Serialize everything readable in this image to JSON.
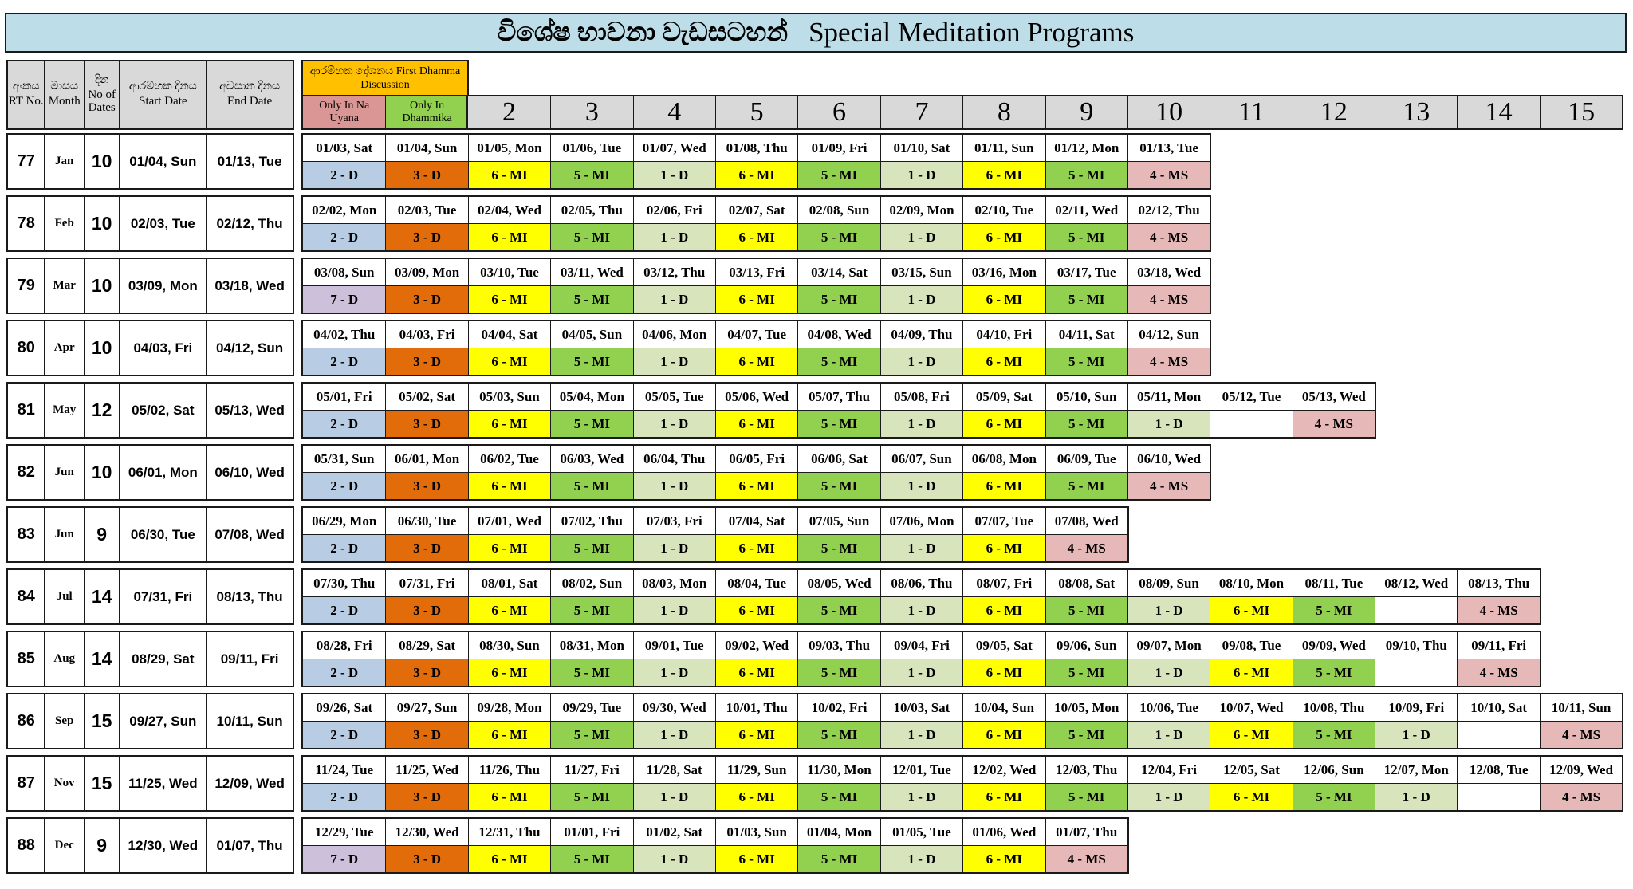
{
  "title": {
    "sinhala": "විශේෂ භාවනා වැඩසටහන්",
    "english": "Special Meditation Programs"
  },
  "header": {
    "columns": [
      {
        "si": "අංකය",
        "en": "RT No."
      },
      {
        "si": "මාසය",
        "en": "Month"
      },
      {
        "si": "දින",
        "en": "No of Dates"
      },
      {
        "si": "ආරම්භක දිනය",
        "en": "Start Date"
      },
      {
        "si": "අවසාන දිනය",
        "en": "End Date"
      }
    ],
    "discussion_group_label": "ආරම්භක දේශනය First Dhamma Discussion",
    "discussion_options": [
      "Only In Na Uyana",
      "Only In Dhammika"
    ],
    "day_numbers": [
      "2",
      "3",
      "4",
      "5",
      "6",
      "7",
      "8",
      "9",
      "10",
      "11",
      "12",
      "13",
      "14",
      "15"
    ]
  },
  "colors": {
    "title_bg": "#BDDEE9",
    "header_bg": "#D9D9D9",
    "discussion_group_bg": "#FFC000",
    "option_bgs": [
      "#D99694",
      "#92D050"
    ],
    "codes": {
      "2 - D": "#B8CCE4",
      "3 - D": "#E26B0A",
      "6 - MI": "#FFFF00",
      "5 - MI": "#92D050",
      "1 - D": "#D8E4BC",
      "4 - MS": "#E6B9B8",
      "7 - D": "#CCC0DA",
      "": "#FFFFFF"
    }
  },
  "programs": [
    {
      "rt": "77",
      "month": "Jan",
      "no_of_dates": "10",
      "start_date": "01/04, Sun",
      "end_date": "01/13, Tue",
      "dates": [
        "01/03, Sat",
        "01/04, Sun",
        "01/05, Mon",
        "01/06, Tue",
        "01/07, Wed",
        "01/08, Thu",
        "01/09, Fri",
        "01/10, Sat",
        "01/11, Sun",
        "01/12, Mon",
        "01/13, Tue"
      ],
      "codes": [
        "2 - D",
        "3 - D",
        "6 - MI",
        "5 - MI",
        "1 - D",
        "6 - MI",
        "5 - MI",
        "1 - D",
        "6 - MI",
        "5 - MI",
        "4 - MS"
      ]
    },
    {
      "rt": "78",
      "month": "Feb",
      "no_of_dates": "10",
      "start_date": "02/03, Tue",
      "end_date": "02/12, Thu",
      "dates": [
        "02/02, Mon",
        "02/03, Tue",
        "02/04, Wed",
        "02/05, Thu",
        "02/06, Fri",
        "02/07, Sat",
        "02/08, Sun",
        "02/09, Mon",
        "02/10, Tue",
        "02/11, Wed",
        "02/12, Thu"
      ],
      "codes": [
        "2 - D",
        "3 - D",
        "6 - MI",
        "5 - MI",
        "1 - D",
        "6 - MI",
        "5 - MI",
        "1 - D",
        "6 - MI",
        "5 - MI",
        "4 - MS"
      ]
    },
    {
      "rt": "79",
      "month": "Mar",
      "no_of_dates": "10",
      "start_date": "03/09, Mon",
      "end_date": "03/18, Wed",
      "dates": [
        "03/08, Sun",
        "03/09, Mon",
        "03/10, Tue",
        "03/11, Wed",
        "03/12, Thu",
        "03/13, Fri",
        "03/14, Sat",
        "03/15, Sun",
        "03/16, Mon",
        "03/17, Tue",
        "03/18, Wed"
      ],
      "codes": [
        "7 - D",
        "3 - D",
        "6 - MI",
        "5 - MI",
        "1 - D",
        "6 - MI",
        "5 - MI",
        "1 - D",
        "6 - MI",
        "5 - MI",
        "4 - MS"
      ]
    },
    {
      "rt": "80",
      "month": "Apr",
      "no_of_dates": "10",
      "start_date": "04/03, Fri",
      "end_date": "04/12, Sun",
      "dates": [
        "04/02, Thu",
        "04/03, Fri",
        "04/04, Sat",
        "04/05, Sun",
        "04/06, Mon",
        "04/07, Tue",
        "04/08, Wed",
        "04/09, Thu",
        "04/10, Fri",
        "04/11, Sat",
        "04/12, Sun"
      ],
      "codes": [
        "2 - D",
        "3 - D",
        "6 - MI",
        "5 - MI",
        "1 - D",
        "6 - MI",
        "5 - MI",
        "1 - D",
        "6 - MI",
        "5 - MI",
        "4 - MS"
      ]
    },
    {
      "rt": "81",
      "month": "May",
      "no_of_dates": "12",
      "start_date": "05/02, Sat",
      "end_date": "05/13, Wed",
      "dates": [
        "05/01, Fri",
        "05/02, Sat",
        "05/03, Sun",
        "05/04, Mon",
        "05/05, Tue",
        "05/06, Wed",
        "05/07, Thu",
        "05/08, Fri",
        "05/09, Sat",
        "05/10, Sun",
        "05/11, Mon",
        "05/12, Tue",
        "05/13, Wed"
      ],
      "codes": [
        "2 - D",
        "3 - D",
        "6 - MI",
        "5 - MI",
        "1 - D",
        "6 - MI",
        "5 - MI",
        "1 - D",
        "6 - MI",
        "5 - MI",
        "1 - D",
        "",
        "4 - MS"
      ]
    },
    {
      "rt": "82",
      "month": "Jun",
      "no_of_dates": "10",
      "start_date": "06/01, Mon",
      "end_date": "06/10, Wed",
      "dates": [
        "05/31, Sun",
        "06/01, Mon",
        "06/02, Tue",
        "06/03, Wed",
        "06/04, Thu",
        "06/05, Fri",
        "06/06, Sat",
        "06/07, Sun",
        "06/08, Mon",
        "06/09, Tue",
        "06/10, Wed"
      ],
      "codes": [
        "2 - D",
        "3 - D",
        "6 - MI",
        "5 - MI",
        "1 - D",
        "6 - MI",
        "5 - MI",
        "1 - D",
        "6 - MI",
        "5 - MI",
        "4 - MS"
      ]
    },
    {
      "rt": "83",
      "month": "Jun",
      "no_of_dates": "9",
      "start_date": "06/30, Tue",
      "end_date": "07/08, Wed",
      "dates": [
        "06/29, Mon",
        "06/30, Tue",
        "07/01, Wed",
        "07/02, Thu",
        "07/03, Fri",
        "07/04, Sat",
        "07/05, Sun",
        "07/06, Mon",
        "07/07, Tue",
        "07/08, Wed"
      ],
      "codes": [
        "2 - D",
        "3 - D",
        "6 - MI",
        "5 - MI",
        "1 - D",
        "6 - MI",
        "5 - MI",
        "1 - D",
        "6 - MI",
        "4 - MS"
      ]
    },
    {
      "rt": "84",
      "month": "Jul",
      "no_of_dates": "14",
      "start_date": "07/31, Fri",
      "end_date": "08/13, Thu",
      "dates": [
        "07/30, Thu",
        "07/31, Fri",
        "08/01, Sat",
        "08/02, Sun",
        "08/03, Mon",
        "08/04, Tue",
        "08/05, Wed",
        "08/06, Thu",
        "08/07, Fri",
        "08/08, Sat",
        "08/09, Sun",
        "08/10, Mon",
        "08/11, Tue",
        "08/12, Wed",
        "08/13, Thu"
      ],
      "codes": [
        "2 - D",
        "3 - D",
        "6 - MI",
        "5 - MI",
        "1 - D",
        "6 - MI",
        "5 - MI",
        "1 - D",
        "6 - MI",
        "5 - MI",
        "1 - D",
        "6 - MI",
        "5 - MI",
        "",
        "4 - MS"
      ]
    },
    {
      "rt": "85",
      "month": "Aug",
      "no_of_dates": "14",
      "start_date": "08/29, Sat",
      "end_date": "09/11, Fri",
      "dates": [
        "08/28, Fri",
        "08/29, Sat",
        "08/30, Sun",
        "08/31, Mon",
        "09/01, Tue",
        "09/02, Wed",
        "09/03, Thu",
        "09/04, Fri",
        "09/05, Sat",
        "09/06, Sun",
        "09/07, Mon",
        "09/08, Tue",
        "09/09, Wed",
        "09/10, Thu",
        "09/11, Fri"
      ],
      "codes": [
        "2 - D",
        "3 - D",
        "6 - MI",
        "5 - MI",
        "1 - D",
        "6 - MI",
        "5 - MI",
        "1 - D",
        "6 - MI",
        "5 - MI",
        "1 - D",
        "6 - MI",
        "5 - MI",
        "",
        "4 - MS"
      ]
    },
    {
      "rt": "86",
      "month": "Sep",
      "no_of_dates": "15",
      "start_date": "09/27, Sun",
      "end_date": "10/11, Sun",
      "dates": [
        "09/26, Sat",
        "09/27, Sun",
        "09/28, Mon",
        "09/29, Tue",
        "09/30, Wed",
        "10/01, Thu",
        "10/02, Fri",
        "10/03, Sat",
        "10/04, Sun",
        "10/05, Mon",
        "10/06, Tue",
        "10/07, Wed",
        "10/08, Thu",
        "10/09, Fri",
        "10/10, Sat",
        "10/11, Sun"
      ],
      "codes": [
        "2 - D",
        "3 - D",
        "6 - MI",
        "5 - MI",
        "1 - D",
        "6 - MI",
        "5 - MI",
        "1 - D",
        "6 - MI",
        "5 - MI",
        "1 - D",
        "6 - MI",
        "5 - MI",
        "1 - D",
        "",
        "4 - MS"
      ]
    },
    {
      "rt": "87",
      "month": "Nov",
      "no_of_dates": "15",
      "start_date": "11/25, Wed",
      "end_date": "12/09, Wed",
      "dates": [
        "11/24, Tue",
        "11/25, Wed",
        "11/26, Thu",
        "11/27, Fri",
        "11/28, Sat",
        "11/29, Sun",
        "11/30, Mon",
        "12/01, Tue",
        "12/02, Wed",
        "12/03, Thu",
        "12/04, Fri",
        "12/05, Sat",
        "12/06, Sun",
        "12/07, Mon",
        "12/08, Tue",
        "12/09, Wed"
      ],
      "codes": [
        "2 - D",
        "3 - D",
        "6 - MI",
        "5 - MI",
        "1 - D",
        "6 - MI",
        "5 - MI",
        "1 - D",
        "6 - MI",
        "5 - MI",
        "1 - D",
        "6 - MI",
        "5 - MI",
        "1 - D",
        "",
        "4 - MS"
      ]
    },
    {
      "rt": "88",
      "month": "Dec",
      "no_of_dates": "9",
      "start_date": "12/30, Wed",
      "end_date": "01/07, Thu",
      "dates": [
        "12/29, Tue",
        "12/30, Wed",
        "12/31, Thu",
        "01/01, Fri",
        "01/02, Sat",
        "01/03, Sun",
        "01/04, Mon",
        "01/05, Tue",
        "01/06, Wed",
        "01/07, Thu"
      ],
      "codes": [
        "7 - D",
        "3 - D",
        "6 - MI",
        "5 - MI",
        "1 - D",
        "6 - MI",
        "5 - MI",
        "1 - D",
        "6 - MI",
        "4 - MS"
      ]
    }
  ]
}
